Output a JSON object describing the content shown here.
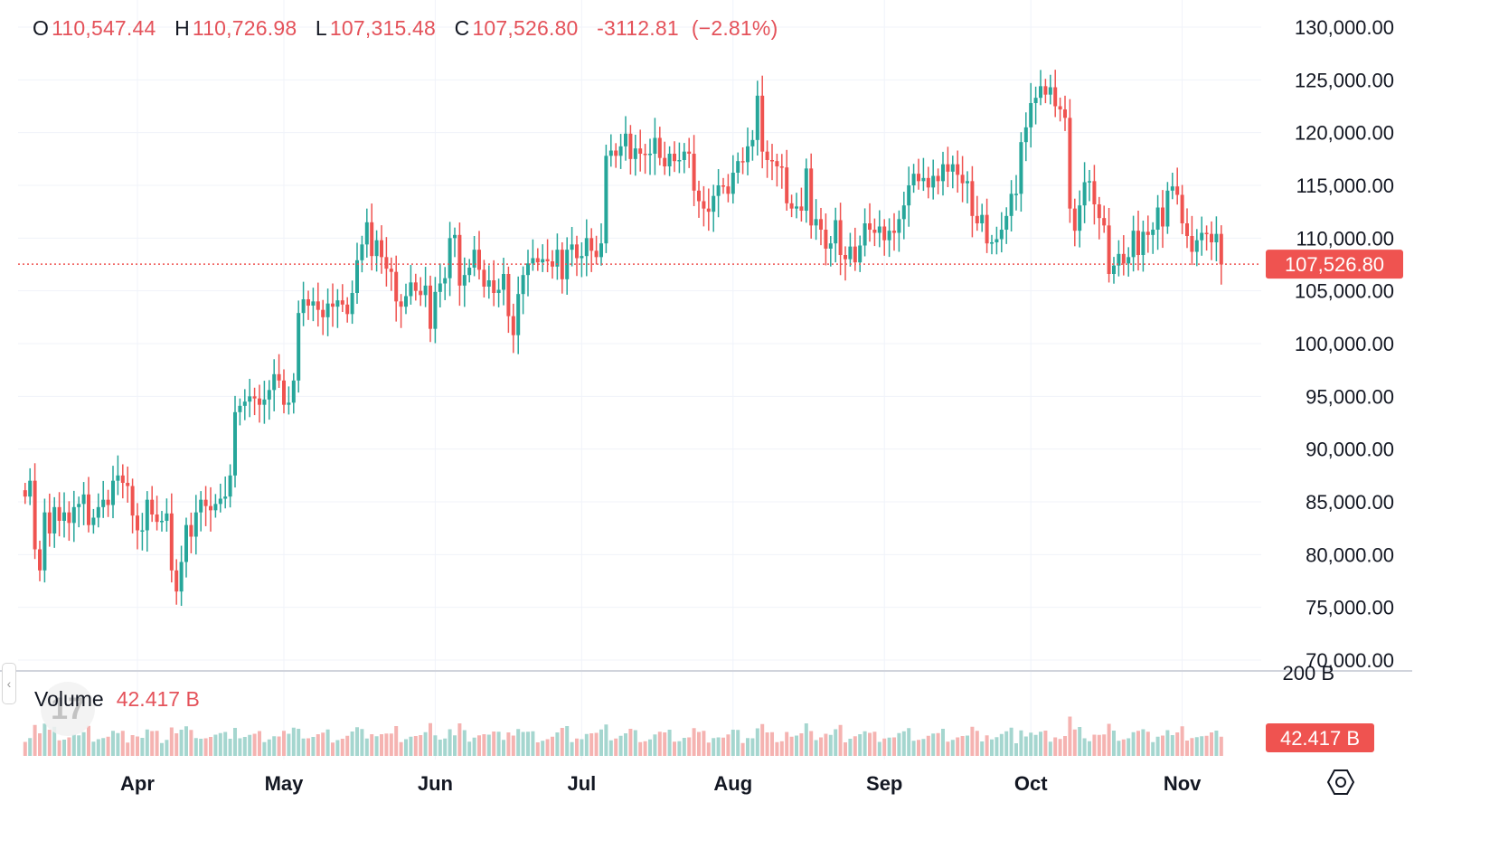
{
  "ohlc": {
    "open_key": "O",
    "open": "110,547.44",
    "high_key": "H",
    "high": "110,726.98",
    "low_key": "L",
    "low": "107,315.48",
    "close_key": "C",
    "close": "107,526.80",
    "change": "-3112.81",
    "change_pct": "(−2.81%)"
  },
  "volume": {
    "label": "Volume",
    "value": "42.417 B",
    "axis_tick": "200 B"
  },
  "price_tag": "107,526.80",
  "logo_glyph": "17",
  "collapse_glyph": "‹",
  "colors": {
    "up": "#26a69a",
    "down": "#ef5350",
    "up_vol": "#a5d6cf",
    "down_vol": "#f5b3b1",
    "text": "#131722",
    "grid": "#f0f3fa"
  },
  "icons": [
    "tradingview-logo-icon",
    "chevron-left-icon",
    "settings-gear-icon"
  ],
  "chart_data": {
    "type": "candlestick",
    "ylim": [
      70000,
      130000
    ],
    "y_ticks": [
      "130,000.00",
      "125,000.00",
      "120,000.00",
      "115,000.00",
      "110,000.00",
      "105,000.00",
      "100,000.00",
      "95,000.00",
      "90,000.00",
      "85,000.00",
      "80,000.00",
      "75,000.00",
      "70,000.00"
    ],
    "x_ticks": [
      "Apr",
      "May",
      "Jun",
      "Jul",
      "Aug",
      "Sep",
      "Oct",
      "Nov"
    ],
    "tick_day_index": [
      0,
      30,
      61,
      91,
      122,
      153,
      183,
      214
    ],
    "start_offset_days": -23,
    "last_close": 107526.8,
    "grid": true,
    "close": [
      85500,
      87000,
      80500,
      78500,
      84000,
      82000,
      84500,
      83200,
      84000,
      83000,
      84500,
      84800,
      85700,
      82800,
      83500,
      84500,
      85200,
      84700,
      87000,
      87500,
      86800,
      86500,
      83700,
      82300,
      82300,
      85200,
      83800,
      83100,
      83200,
      83900,
      78500,
      76500,
      79300,
      82800,
      81700,
      84000,
      85200,
      84600,
      84200,
      84800,
      85300,
      85500,
      87500,
      93500,
      94100,
      94500,
      95000,
      94800,
      94200,
      94700,
      95600,
      97100,
      96500,
      94200,
      94400,
      96500,
      102900,
      104200,
      103600,
      104000,
      103200,
      102500,
      103800,
      103500,
      104100,
      103700,
      102800,
      104800,
      107900,
      109400,
      111500,
      108300,
      109800,
      108200,
      107100,
      106800,
      104000,
      103500,
      104500,
      105800,
      105000,
      104600,
      105500,
      101400,
      104900,
      105700,
      106200,
      110000,
      110300,
      105500,
      106500,
      107200,
      108900,
      107000,
      105400,
      106000,
      104800,
      105100,
      106600,
      102600,
      100800,
      104700,
      106500,
      107600,
      108100,
      107700,
      108000,
      107800,
      107300,
      108900,
      106100,
      108900,
      109400,
      108100,
      108300,
      110000,
      108800,
      108200,
      109500,
      117800,
      118300,
      117800,
      118700,
      119900,
      117500,
      118500,
      118000,
      117900,
      118000,
      119500,
      117600,
      116800,
      118000,
      117300,
      117400,
      118200,
      118000,
      114500,
      113500,
      112800,
      112500,
      114000,
      115000,
      114900,
      114200,
      116200,
      117300,
      117200,
      118700,
      119300,
      123500,
      118200,
      117400,
      117300,
      116800,
      116700,
      113300,
      112800,
      113000,
      112600,
      116600,
      111200,
      111800,
      110800,
      109000,
      109500,
      111700,
      108400,
      108000,
      109200,
      107700,
      109300,
      111400,
      110800,
      110500,
      111100,
      109800,
      110700,
      110500,
      111800,
      113100,
      115000,
      116100,
      115400,
      115700,
      114800,
      115900,
      115400,
      117000,
      116300,
      117000,
      116000,
      115200,
      115400,
      112100,
      111400,
      112200,
      109500,
      109600,
      109900,
      110800,
      112100,
      114200,
      114200,
      119100,
      120500,
      122800,
      123300,
      124400,
      123600,
      124300,
      122500,
      122200,
      121400,
      112800,
      110700,
      113100,
      115300,
      115400,
      113200,
      111900,
      111200,
      106600,
      107400,
      108500,
      107600,
      108200,
      110700,
      108400,
      110600,
      110300,
      110800,
      112900,
      111100,
      114500,
      114900,
      114100,
      111400,
      110200,
      108700,
      109800,
      110500,
      110400,
      109600,
      110400,
      107500
    ]
  }
}
